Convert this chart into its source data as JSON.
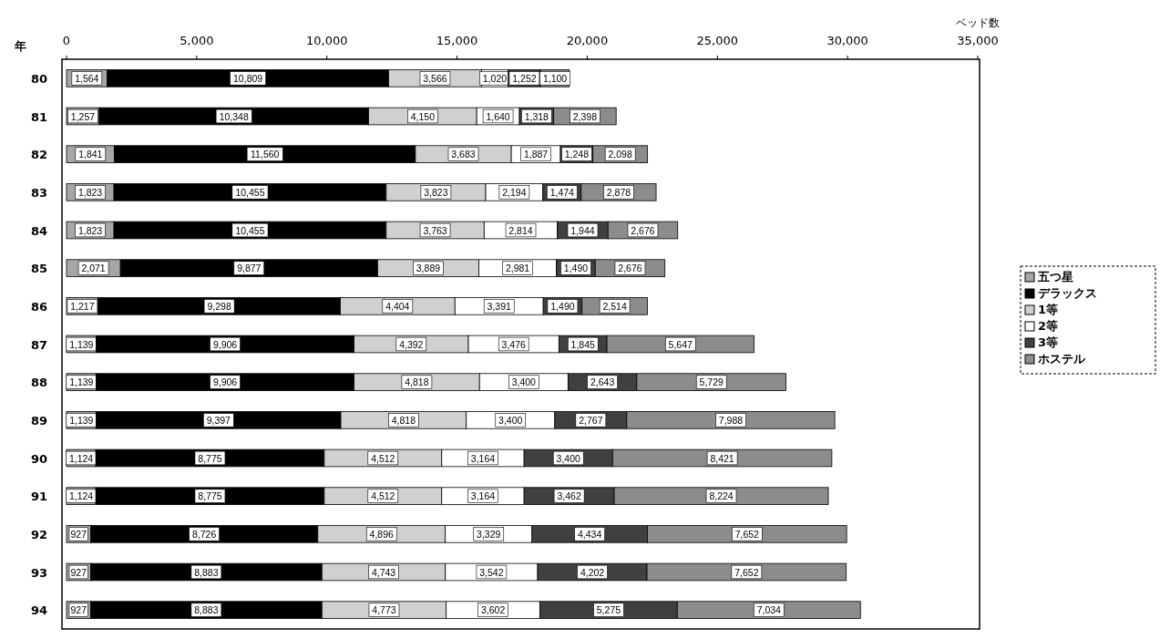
{
  "chart_data": {
    "type": "bar",
    "orientation": "horizontal",
    "stacked": true,
    "xlabel": "ベッド数",
    "ylabel": "年",
    "categories": [
      "80",
      "81",
      "82",
      "83",
      "84",
      "85",
      "86",
      "87",
      "88",
      "89",
      "90",
      "91",
      "92",
      "93",
      "94"
    ],
    "series": [
      {
        "name": "五つ星",
        "color": "#a6a6a6",
        "values": [
          1564,
          1257,
          1841,
          1823,
          1823,
          2071,
          1217,
          1139,
          1139,
          1139,
          1124,
          1124,
          927,
          927,
          927
        ],
        "value_labels": [
          "1,564",
          "1,257",
          "1,841",
          "1,823",
          "1,823",
          "2,071",
          "1,217",
          "1,139",
          "1,139",
          "1,139",
          "1,124",
          "1,124",
          "927",
          "927",
          "927"
        ]
      },
      {
        "name": "デラックス",
        "color": "#000000",
        "values": [
          10809,
          10348,
          11560,
          10455,
          10455,
          9877,
          9298,
          9906,
          9906,
          9397,
          8775,
          8775,
          8726,
          8883,
          8883
        ],
        "value_labels": [
          "10,809",
          "10,348",
          "11,560",
          "10,455",
          "10,455",
          "9,877",
          "9,298",
          "9,906",
          "9,906",
          "9,397",
          "8,775",
          "8,775",
          "8,726",
          "8,883",
          "8,883"
        ]
      },
      {
        "name": "1等",
        "color": "#d0d0d0",
        "values": [
          3566,
          4150,
          3683,
          3823,
          3763,
          3889,
          4404,
          4392,
          4818,
          4818,
          4512,
          4512,
          4896,
          4743,
          4773
        ],
        "value_labels": [
          "3,566",
          "4,150",
          "3,683",
          "3,823",
          "3,763",
          "3,889",
          "4,404",
          "4,392",
          "4,818",
          "4,818",
          "4,512",
          "4,512",
          "4,896",
          "4,743",
          "4,773"
        ]
      },
      {
        "name": "2等",
        "color": "#ffffff",
        "values": [
          1020,
          1640,
          1887,
          2194,
          2814,
          2981,
          3391,
          3476,
          3400,
          3400,
          3164,
          3164,
          3329,
          3542,
          3602
        ],
        "value_labels": [
          "1,020",
          "1,640",
          "1,887",
          "2,194",
          "2,814",
          "2,981",
          "3,391",
          "3,476",
          "3,400",
          "3,400",
          "3,164",
          "3,164",
          "3,329",
          "3,542",
          "3,602"
        ]
      },
      {
        "name": "3等",
        "color": "#404040",
        "values": [
          1252,
          1318,
          1248,
          1474,
          1944,
          1490,
          1490,
          1845,
          2643,
          2767,
          3400,
          3462,
          4434,
          4202,
          5275
        ],
        "value_labels": [
          "1,252",
          "1,318",
          "1,248",
          "1,474",
          "1,944",
          "1,490",
          "1,490",
          "1,845",
          "2,643",
          "2,767",
          "3,400",
          "3,462",
          "4,434",
          "4,202",
          "5,275"
        ]
      },
      {
        "name": "ホステル",
        "color": "#8c8c8c",
        "values": [
          1100,
          2398,
          2098,
          2878,
          2676,
          2676,
          2514,
          5647,
          5729,
          7988,
          8421,
          8224,
          7652,
          7652,
          7034
        ],
        "value_labels": [
          "1,100",
          "2,398",
          "2,098",
          "2,878",
          "2,676",
          "2,676",
          "2,514",
          "5,647",
          "5,729",
          "7,988",
          "8,421",
          "8,224",
          "7,652",
          "7,652",
          "7,034"
        ]
      }
    ],
    "xlim": [
      0,
      35000
    ],
    "xticks": [
      0,
      {
        "value": 5000,
        "label": "5,000"
      },
      {
        "value": 10000,
        "label": "10,000"
      },
      {
        "value": 15000,
        "label": "15,000"
      },
      {
        "value": 20000,
        "label": "20,000"
      },
      {
        "value": 25000,
        "label": "25,000"
      },
      {
        "value": 30000,
        "label": "30,000"
      },
      {
        "value": 35000,
        "label": "35,000"
      }
    ],
    "legend": "right",
    "grid": false
  }
}
